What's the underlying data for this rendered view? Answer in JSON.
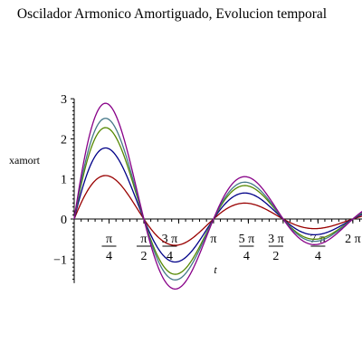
{
  "chart_data": {
    "type": "line",
    "title": "Oscilador Armonico Amortiguado, Evolucion temporal",
    "xlabel": "t",
    "ylabel": "xamort",
    "xlim": [
      0,
      6.6
    ],
    "ylim": [
      -1.6,
      3.0
    ],
    "grid": false,
    "legend": "none",
    "yticks": [
      {
        "value": 3,
        "label": "3"
      },
      {
        "value": 2,
        "label": "2"
      },
      {
        "value": 1,
        "label": "1"
      },
      {
        "value": 0,
        "label": "0"
      },
      {
        "value": -1,
        "label": "−1"
      }
    ],
    "xticks": [
      {
        "value": 0.7854,
        "num": "π",
        "den": "4"
      },
      {
        "value": 1.5708,
        "num": "π",
        "den": "2"
      },
      {
        "value": 2.3562,
        "num": "3 π",
        "den": "4"
      },
      {
        "value": 3.1416,
        "num": "π",
        "den": ""
      },
      {
        "value": 3.927,
        "num": "5 π",
        "den": "4"
      },
      {
        "value": 4.7124,
        "num": "3 π",
        "den": "2"
      },
      {
        "value": 5.4978,
        "num": "7 π",
        "den": "4"
      },
      {
        "value": 6.2832,
        "num": "2 π",
        "den": ""
      }
    ],
    "series": [
      {
        "color": "#990000",
        "amplitude": 1.07,
        "damping": 0.32,
        "x": [
          0,
          0.39,
          0.79,
          1.18,
          1.57,
          1.96,
          2.36,
          2.75,
          3.14,
          3.53,
          3.93,
          4.32,
          4.71,
          5.11,
          5.5,
          5.89,
          6.28,
          6.6
        ],
        "y": [
          0,
          0.78,
          1.07,
          0.69,
          0,
          -0.49,
          -0.49,
          -0.28,
          0,
          0.18,
          0.19,
          0.13,
          0,
          -0.08,
          -0.08,
          -0.05,
          0,
          0.03
        ]
      },
      {
        "color": "#000088",
        "amplitude": 1.75,
        "damping": 0.32,
        "x": [
          0,
          0.39,
          0.79,
          1.18,
          1.57,
          1.96,
          2.36,
          2.75,
          3.14,
          3.53,
          3.93,
          4.32,
          4.71,
          5.11,
          5.5,
          5.89,
          6.28,
          6.6
        ],
        "y": [
          0,
          1.28,
          1.75,
          1.13,
          0,
          -0.8,
          -0.8,
          -0.46,
          0,
          0.3,
          0.32,
          0.21,
          0,
          -0.13,
          -0.13,
          -0.08,
          0,
          0.05
        ]
      },
      {
        "color": "#558800",
        "amplitude": 2.25,
        "damping": 0.32,
        "x": [
          0,
          0.39,
          0.79,
          1.18,
          1.57,
          1.96,
          2.36,
          2.75,
          3.14,
          3.53,
          3.93,
          4.32,
          4.71,
          5.11,
          5.5,
          5.89,
          6.28,
          6.6
        ],
        "y": [
          0,
          1.65,
          2.25,
          1.45,
          0,
          -1.03,
          -1.03,
          -0.59,
          0,
          0.38,
          0.41,
          0.27,
          0,
          -0.17,
          -0.17,
          -0.1,
          0,
          0.06
        ]
      },
      {
        "color": "#447788",
        "amplitude": 2.48,
        "damping": 0.32,
        "x": [
          0,
          0.39,
          0.79,
          1.18,
          1.57,
          1.96,
          2.36,
          2.75,
          3.14,
          3.53,
          3.93,
          4.32,
          4.71,
          5.11,
          5.5,
          5.89,
          6.28,
          6.6
        ],
        "y": [
          0,
          1.81,
          2.48,
          1.6,
          0,
          -1.13,
          -1.13,
          -0.65,
          0,
          0.42,
          0.45,
          0.29,
          0,
          -0.19,
          -0.19,
          -0.11,
          0,
          0.07
        ]
      },
      {
        "color": "#880088",
        "amplitude": 2.85,
        "damping": 0.32,
        "x": [
          0,
          0.39,
          0.79,
          1.18,
          1.57,
          1.96,
          2.36,
          2.75,
          3.14,
          3.53,
          3.93,
          4.32,
          4.71,
          5.11,
          5.5,
          5.89,
          6.28,
          6.6
        ],
        "y": [
          0,
          2.09,
          2.85,
          1.84,
          0,
          -1.3,
          -1.3,
          -0.75,
          0,
          0.48,
          0.52,
          0.34,
          0,
          -0.22,
          -0.22,
          -0.13,
          0,
          0.08
        ]
      }
    ]
  }
}
